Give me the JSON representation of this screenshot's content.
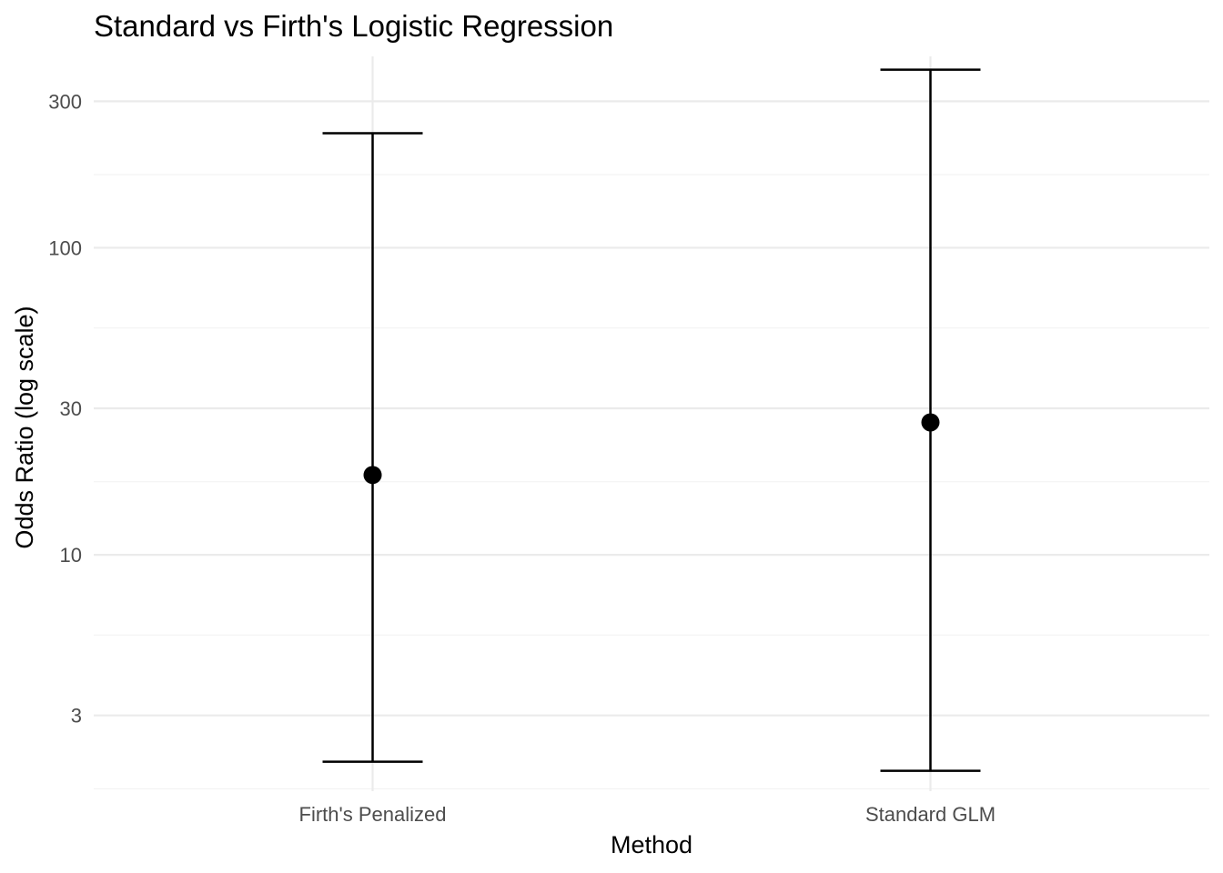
{
  "chart_data": {
    "type": "scatter",
    "title": "Standard vs Firth's Logistic Regression",
    "xlabel": "Method",
    "ylabel": "Odds Ratio (log scale)",
    "y_scale": "log10",
    "ylim": [
      1.7,
      420
    ],
    "yticks": [
      3,
      10,
      30,
      100,
      300
    ],
    "ytick_labels": [
      "3",
      "10",
      "30",
      "100",
      "300"
    ],
    "minor_yticks": [
      1.73,
      5.48,
      17.3,
      54.8,
      173
    ],
    "categories": [
      "Firth's Penalized",
      "Standard GLM"
    ],
    "series": [
      {
        "estimate": [
          18.2,
          27.0
        ],
        "ci_lower": [
          2.12,
          1.98
        ],
        "ci_upper": [
          236,
          380
        ]
      }
    ],
    "grid": true,
    "legend": "none"
  }
}
